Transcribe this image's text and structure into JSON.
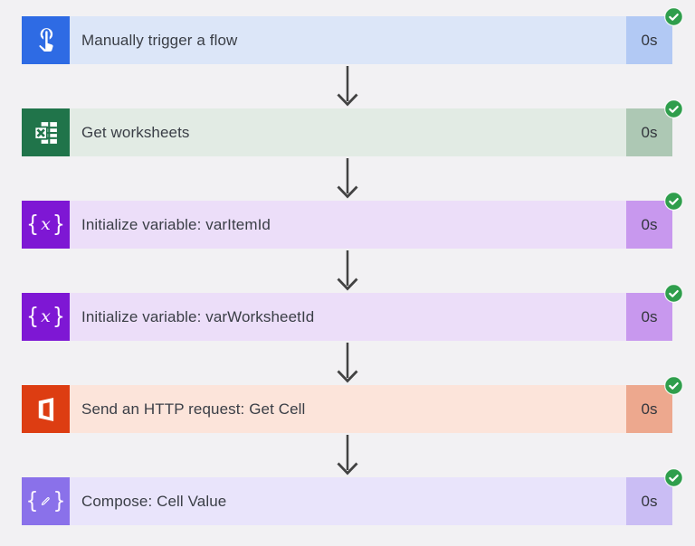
{
  "app": {
    "name": "Power Automate flow run",
    "background_color": "#f2f1f3",
    "arrow_color": "#424242",
    "success_badge_color": "#2f9e4c",
    "text_color": "#3a3e46"
  },
  "steps": [
    {
      "label": "Manually trigger a flow",
      "duration": "0s",
      "status": "succeeded",
      "icon": "touch-trigger-icon",
      "colors": {
        "icon_bg": "#2e6be4",
        "bar": "#dce6f8",
        "duration_bg": "#b2c9f4"
      }
    },
    {
      "label": "Get worksheets",
      "duration": "0s",
      "status": "succeeded",
      "icon": "excel-icon",
      "colors": {
        "icon_bg": "#20744a",
        "bar": "#e2ebe4",
        "duration_bg": "#adc8b4"
      }
    },
    {
      "label": "Initialize variable: varItemId",
      "duration": "0s",
      "status": "succeeded",
      "icon": "braces-x-variable-icon",
      "colors": {
        "icon_bg": "#7e17d4",
        "bar": "#ecdef9",
        "duration_bg": "#c898ee"
      }
    },
    {
      "label": "Initialize variable: varWorksheetId",
      "duration": "0s",
      "status": "succeeded",
      "icon": "braces-x-variable-icon",
      "colors": {
        "icon_bg": "#7e17d4",
        "bar": "#ecdef9",
        "duration_bg": "#c898ee"
      }
    },
    {
      "label": "Send an HTTP request: Get Cell",
      "duration": "0s",
      "status": "succeeded",
      "icon": "office-icon",
      "colors": {
        "icon_bg": "#dd3d12",
        "bar": "#fce4da",
        "duration_bg": "#eda88e"
      }
    },
    {
      "label": "Compose: Cell Value",
      "duration": "0s",
      "status": "succeeded",
      "icon": "braces-pencil-compose-icon",
      "colors": {
        "icon_bg": "#8a71ea",
        "bar": "#e9e4fb",
        "duration_bg": "#cabdf4"
      }
    }
  ]
}
